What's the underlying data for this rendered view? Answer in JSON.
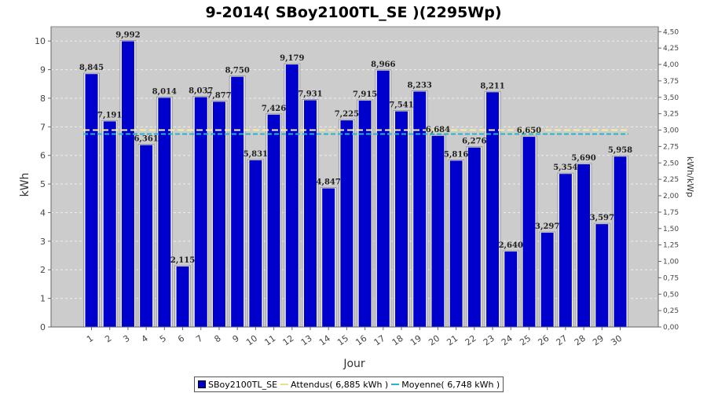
{
  "chart_data": {
    "type": "bar",
    "title": "9-2014( SBoy2100TL_SE )(2295Wp)",
    "xlabel": "Jour",
    "ylabel": "kWh",
    "ylabel_right": "kWh/kWp",
    "ylim": [
      0,
      10.5
    ],
    "ylim_right": [
      0,
      4.575
    ],
    "yticks": [
      "0",
      "1",
      "2",
      "3",
      "4",
      "5",
      "6",
      "7",
      "8",
      "9",
      "10"
    ],
    "yticks_right": [
      "0,00",
      "0,25",
      "0,50",
      "0,75",
      "1,00",
      "1,25",
      "1,50",
      "1,75",
      "2,00",
      "2,25",
      "2,50",
      "2,75",
      "3,00",
      "3,25",
      "3,50",
      "3,75",
      "4,00",
      "4,25",
      "4,50"
    ],
    "categories": [
      "1",
      "2",
      "3",
      "4",
      "5",
      "6",
      "7",
      "8",
      "9",
      "10",
      "11",
      "12",
      "13",
      "14",
      "15",
      "16",
      "17",
      "18",
      "19",
      "20",
      "21",
      "22",
      "23",
      "24",
      "25",
      "26",
      "27",
      "28",
      "29",
      "30"
    ],
    "values": [
      8.845,
      7.191,
      9.992,
      6.361,
      8.014,
      2.115,
      8.037,
      7.877,
      8.75,
      5.831,
      7.426,
      9.179,
      7.931,
      4.847,
      7.225,
      7.915,
      8.966,
      7.541,
      8.233,
      6.684,
      5.816,
      6.276,
      8.211,
      2.64,
      6.65,
      3.297,
      5.354,
      5.69,
      3.597,
      5.958
    ],
    "value_labels": [
      "8,845",
      "7,191",
      "9,992",
      "6,361",
      "8,014",
      "2,115",
      "8,037",
      "7,877",
      "8,750",
      "5,831",
      "7,426",
      "9,179",
      "7,931",
      "4,847",
      "7,225",
      "7,915",
      "8,966",
      "7,541",
      "8,233",
      "6,684",
      "5,816",
      "6,276",
      "8,211",
      "2,640",
      "6,650",
      "3,297",
      "5,354",
      "5,690",
      "3,597",
      "5,958"
    ],
    "reference_lines": [
      {
        "name": "Attendus( 6,885 kWh )",
        "value": 6.885,
        "color": "#f5f0a0"
      },
      {
        "name": "Moyenne( 6,748 kWh )",
        "value": 6.748,
        "color": "#22b8c8"
      }
    ],
    "series_name": "SBoy2100TL_SE",
    "bar_color": "#0000cc",
    "plot_background": "#cccccc",
    "grid": true,
    "legend_position": "bottom"
  }
}
